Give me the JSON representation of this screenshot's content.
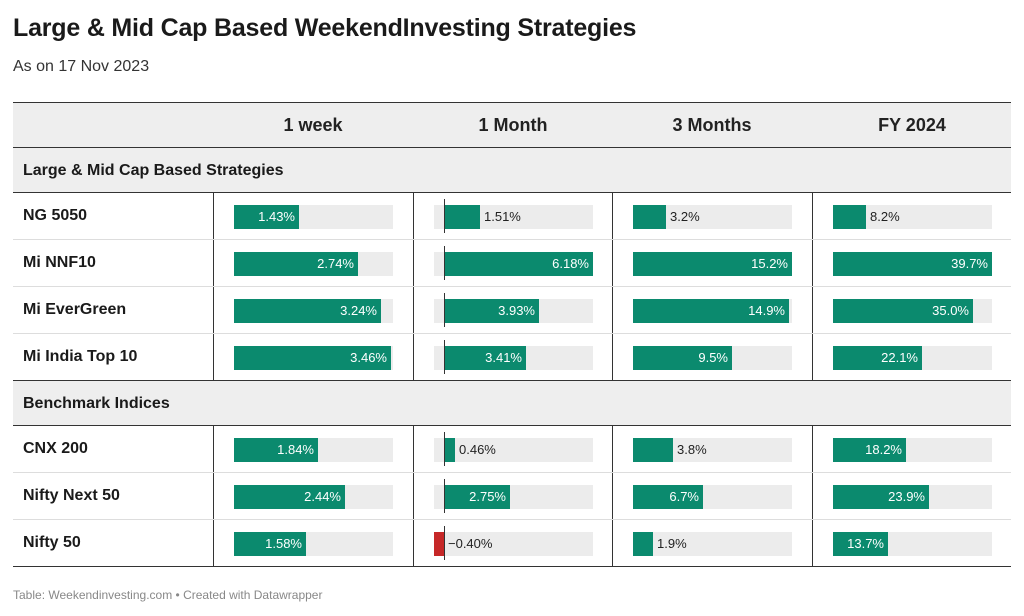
{
  "title": "Large & Mid Cap Based WeekendInvesting Strategies",
  "subtitle": "As on 17 Nov 2023",
  "footer": "Table: Weekendinvesting.com • Created with Datawrapper",
  "colors": {
    "positive": "#0b8a6e",
    "negative": "#c62828",
    "track": "#ececec",
    "header_bg": "#eeeeee"
  },
  "chart_data": {
    "type": "table",
    "columns": [
      "1 week",
      "1 Month",
      "3 Months",
      "FY 2024"
    ],
    "column_max": [
      3.5,
      6.18,
      15.2,
      39.7
    ],
    "groups": [
      {
        "label": "Large & Mid Cap Based Strategies",
        "rows": [
          {
            "name": "NG 5050",
            "values": [
              1.43,
              1.51,
              3.2,
              8.2
            ],
            "labels": [
              "1.43%",
              "1.51%",
              "3.2%",
              "8.2%"
            ]
          },
          {
            "name": "Mi NNF10",
            "values": [
              2.74,
              6.18,
              15.2,
              39.7
            ],
            "labels": [
              "2.74%",
              "6.18%",
              "15.2%",
              "39.7%"
            ]
          },
          {
            "name": "Mi EverGreen",
            "values": [
              3.24,
              3.93,
              14.9,
              35.0
            ],
            "labels": [
              "3.24%",
              "3.93%",
              "14.9%",
              "35.0%"
            ]
          },
          {
            "name": "Mi India Top 10",
            "values": [
              3.46,
              3.41,
              9.5,
              22.1
            ],
            "labels": [
              "3.46%",
              "3.41%",
              "9.5%",
              "22.1%"
            ]
          }
        ]
      },
      {
        "label": "Benchmark Indices",
        "rows": [
          {
            "name": "CNX 200",
            "values": [
              1.84,
              0.46,
              3.8,
              18.2
            ],
            "labels": [
              "1.84%",
              "0.46%",
              "3.8%",
              "18.2%"
            ]
          },
          {
            "name": "Nifty Next 50",
            "values": [
              2.44,
              2.75,
              6.7,
              23.9
            ],
            "labels": [
              "2.44%",
              "2.75%",
              "6.7%",
              "23.9%"
            ]
          },
          {
            "name": "Nifty 50",
            "values": [
              1.58,
              -0.4,
              1.9,
              13.7
            ],
            "labels": [
              "1.58%",
              "−0.40%",
              "1.9%",
              "13.7%"
            ]
          }
        ]
      }
    ]
  }
}
